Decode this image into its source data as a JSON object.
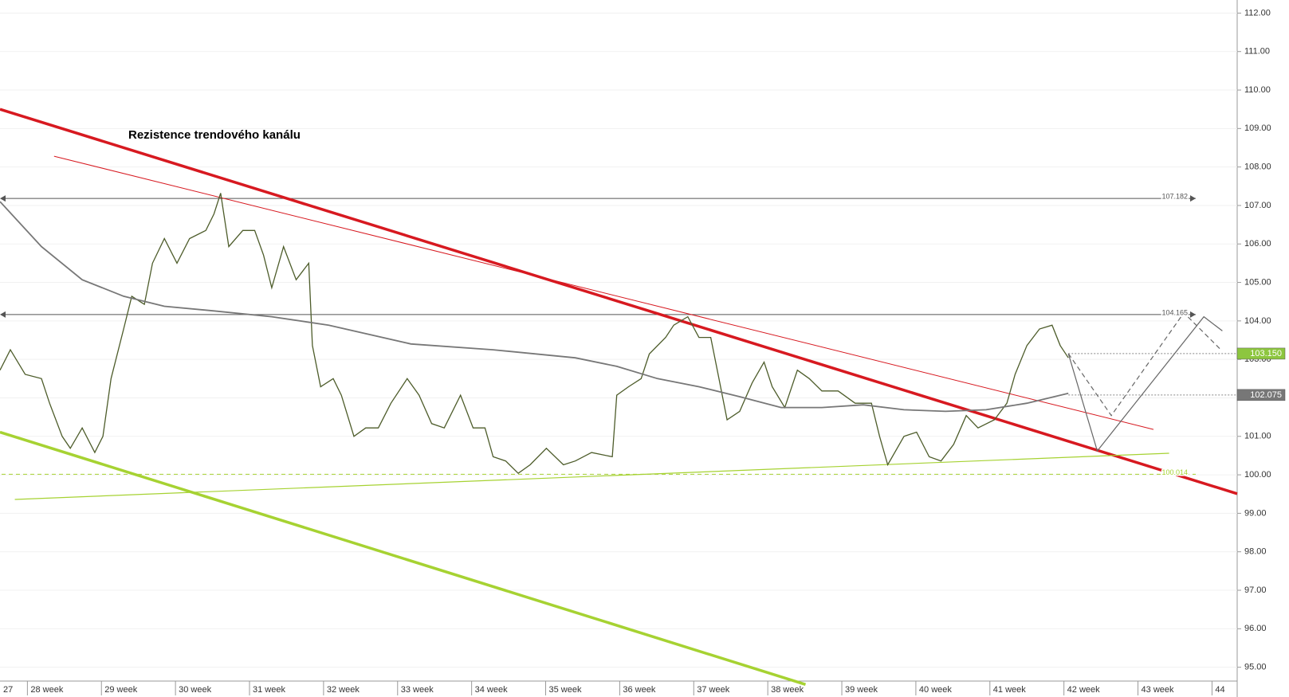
{
  "chart_data": {
    "type": "line",
    "annotation": "Rezistence trendového kanálu",
    "xlim": [
      27.63,
      44.34
    ],
    "ylim": [
      94.64,
      112.34
    ],
    "xticks": [
      {
        "value": 27,
        "label": "27"
      },
      {
        "value": 28,
        "label": "28 week"
      },
      {
        "value": 29,
        "label": "29 week"
      },
      {
        "value": 30,
        "label": "30 week"
      },
      {
        "value": 31,
        "label": "31 week"
      },
      {
        "value": 32,
        "label": "32 week"
      },
      {
        "value": 33,
        "label": "33 week"
      },
      {
        "value": 34,
        "label": "34 week"
      },
      {
        "value": 35,
        "label": "35 week"
      },
      {
        "value": 36,
        "label": "36 week"
      },
      {
        "value": 37,
        "label": "37 week"
      },
      {
        "value": 38,
        "label": "38 week"
      },
      {
        "value": 39,
        "label": "39 week"
      },
      {
        "value": 40,
        "label": "40 week"
      },
      {
        "value": 41,
        "label": "41 week"
      },
      {
        "value": 42,
        "label": "42 week"
      },
      {
        "value": 43,
        "label": "43 week"
      },
      {
        "value": 44,
        "label": "44"
      }
    ],
    "yticks": [
      {
        "value": 95,
        "label": "95.00"
      },
      {
        "value": 96,
        "label": "96.00"
      },
      {
        "value": 97,
        "label": "97.00"
      },
      {
        "value": 98,
        "label": "98.00"
      },
      {
        "value": 99,
        "label": "99.00"
      },
      {
        "value": 100,
        "label": "100.00"
      },
      {
        "value": 101,
        "label": "101.00"
      },
      {
        "value": 102,
        "label": "102.00"
      },
      {
        "value": 103,
        "label": "103.00"
      },
      {
        "value": 104,
        "label": "104.00"
      },
      {
        "value": 105,
        "label": "105.00"
      },
      {
        "value": 106,
        "label": "106.00"
      },
      {
        "value": 107,
        "label": "107.00"
      },
      {
        "value": 108,
        "label": "108.00"
      },
      {
        "value": 109,
        "label": "109.00"
      },
      {
        "value": 110,
        "label": "110.00"
      },
      {
        "value": 111,
        "label": "111.00"
      },
      {
        "value": 112,
        "label": "112.00"
      }
    ],
    "grid": true,
    "series": [
      {
        "color": "#4d5c2a",
        "width": 1.3,
        "x": [
          27.63,
          27.77,
          27.97,
          28.19,
          28.3,
          28.47,
          28.58,
          28.74,
          28.91,
          29.02,
          29.13,
          29.3,
          29.41,
          29.58,
          29.69,
          29.85,
          30.02,
          30.19,
          30.41,
          30.52,
          30.61,
          30.72,
          30.91,
          31.07,
          31.19,
          31.3,
          31.46,
          31.63,
          31.8,
          31.85,
          31.96,
          32.13,
          32.24,
          32.41,
          32.57,
          32.74,
          32.91,
          33.13,
          33.29,
          33.46,
          33.63,
          33.85,
          34.02,
          34.18,
          34.29,
          34.46,
          34.63,
          34.79,
          35.01,
          35.24,
          35.4,
          35.62,
          35.9,
          35.96,
          36.12,
          36.29,
          36.4,
          36.62,
          36.73,
          36.92,
          37.07,
          37.23,
          37.34,
          37.45,
          37.62,
          37.79,
          37.95,
          38.06,
          38.23,
          38.4,
          38.56,
          38.73,
          38.95,
          39.18,
          39.4,
          39.51,
          39.62,
          39.84,
          40.01,
          40.18,
          40.34,
          40.51,
          40.68,
          40.84,
          41.06,
          41.23,
          41.34,
          41.5,
          41.67,
          41.84,
          41.95,
          42.06
        ],
        "values": [
          102.72,
          103.25,
          102.61,
          102.5,
          101.86,
          101.0,
          100.69,
          101.22,
          100.58,
          101.0,
          102.5,
          103.79,
          104.64,
          104.43,
          105.5,
          106.14,
          105.5,
          106.14,
          106.35,
          106.78,
          107.32,
          105.93,
          106.35,
          106.35,
          105.71,
          104.86,
          105.93,
          105.07,
          105.5,
          103.36,
          102.29,
          102.5,
          102.07,
          101.0,
          101.22,
          101.22,
          101.86,
          102.5,
          102.07,
          101.33,
          101.22,
          102.07,
          101.22,
          101.22,
          100.47,
          100.36,
          100.04,
          100.26,
          100.69,
          100.26,
          100.36,
          100.58,
          100.47,
          102.07,
          102.29,
          102.5,
          103.14,
          103.57,
          103.89,
          104.11,
          103.57,
          103.57,
          102.5,
          101.43,
          101.65,
          102.39,
          102.93,
          102.29,
          101.75,
          102.72,
          102.5,
          102.18,
          102.18,
          101.86,
          101.86,
          101.0,
          100.26,
          101.0,
          101.11,
          100.47,
          100.36,
          100.79,
          101.54,
          101.22,
          101.43,
          101.86,
          102.61,
          103.36,
          103.79,
          103.89,
          103.36,
          103.04
        ]
      },
      {
        "color": "#777777",
        "width": 1.8,
        "x": [
          27.63,
          28.19,
          28.74,
          29.3,
          29.85,
          30.52,
          31.3,
          32.07,
          33.18,
          34.29,
          35.4,
          35.96,
          36.51,
          37.07,
          37.62,
          38.18,
          38.73,
          39.29,
          39.84,
          40.4,
          40.95,
          41.5,
          42.06
        ],
        "values": [
          107.1,
          105.93,
          105.07,
          104.64,
          104.38,
          104.26,
          104.11,
          103.89,
          103.4,
          103.25,
          103.04,
          102.82,
          102.5,
          102.29,
          102.03,
          101.75,
          101.75,
          101.82,
          101.69,
          101.65,
          101.69,
          101.86,
          102.12
        ]
      }
    ],
    "trend_lines": [
      {
        "color": "#d71920",
        "width": 3.5,
        "x": [
          27.63,
          44.34
        ],
        "values": [
          109.5,
          99.51
        ]
      },
      {
        "color": "#d71920",
        "width": 1,
        "x": [
          28.36,
          43.21
        ],
        "values": [
          108.28,
          101.18
        ]
      },
      {
        "color": "#a6d232",
        "width": 3.5,
        "x": [
          27.63,
          38.51
        ],
        "values": [
          101.11,
          94.55
        ]
      },
      {
        "color": "#a6d232",
        "width": 1.2,
        "x": [
          27.83,
          43.42
        ],
        "values": [
          99.36,
          100.56
        ]
      },
      {
        "color": "#666666",
        "width": 1.2,
        "x": [
          42.06,
          42.45,
          43.89,
          44.14
        ],
        "values": [
          103.15,
          100.62,
          104.11,
          103.74
        ]
      },
      {
        "color": "#666666",
        "width": 1.2,
        "dash": true,
        "x": [
          42.06,
          42.64,
          43.62,
          44.12
        ],
        "values": [
          103.15,
          101.54,
          104.21,
          103.25
        ]
      }
    ],
    "levels": [
      {
        "value": 107.182,
        "color": "#555555",
        "style": "solid",
        "arrows": true
      },
      {
        "value": 104.165,
        "color": "#555555",
        "style": "solid",
        "arrows": true
      },
      {
        "value": 100.014,
        "color": "#a6d232",
        "style": "dashed"
      },
      {
        "value": 103.15,
        "label": "103.150",
        "color": "#888888",
        "style": "dotted",
        "x_start": 42.06,
        "box": "#8dc63f"
      },
      {
        "value": 102.075,
        "color": "#888888",
        "style": "dotted",
        "x_start": 42.06,
        "box": "#777777"
      }
    ]
  }
}
